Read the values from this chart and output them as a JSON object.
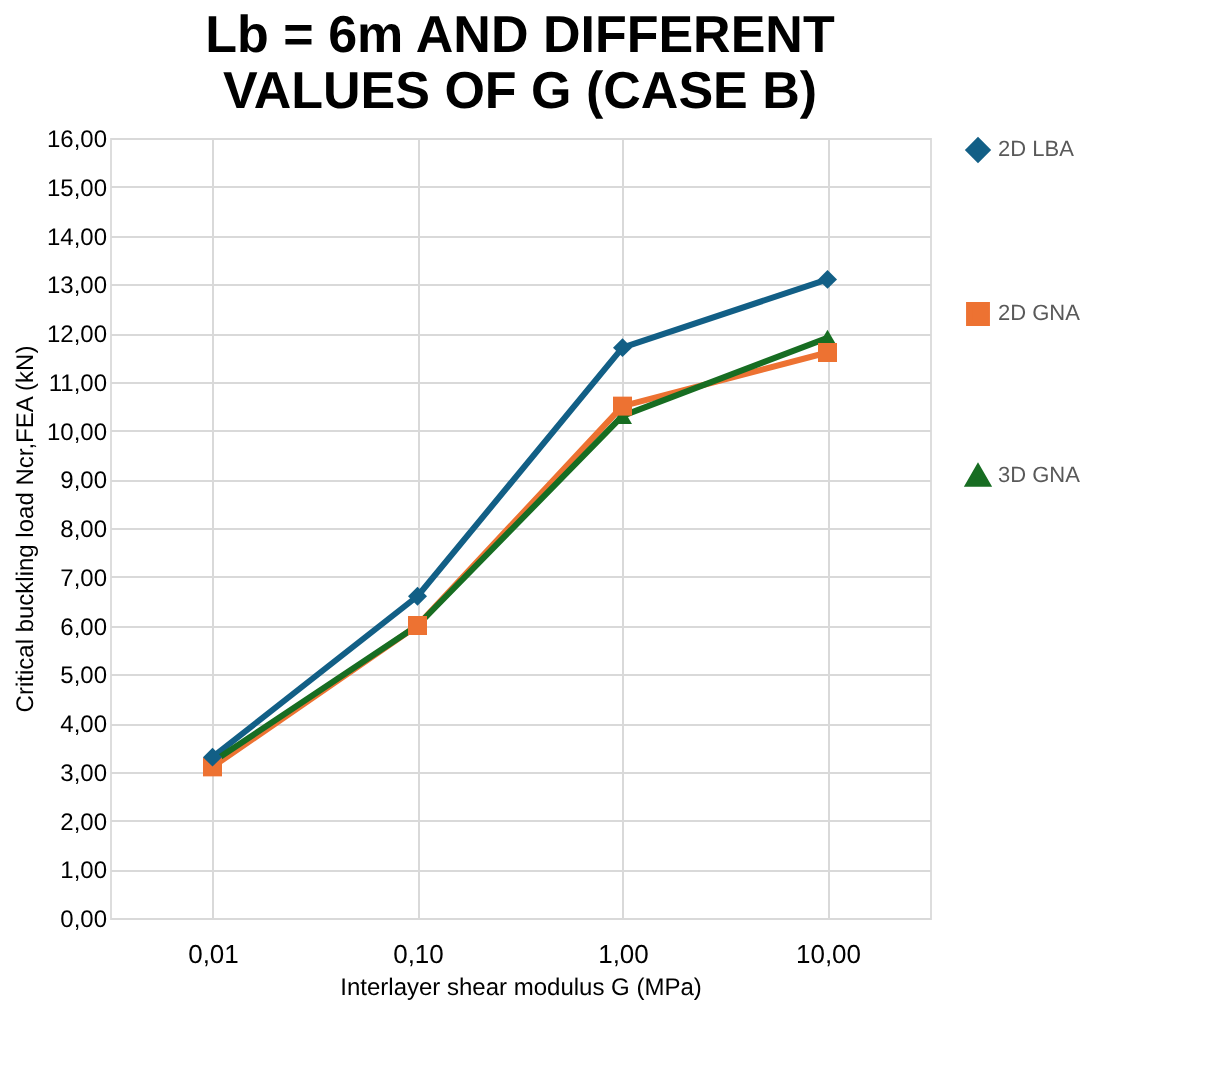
{
  "chart_data": {
    "type": "line",
    "title": "Lb = 6m AND DIFFERENT VALUES OF G (CASE B)",
    "xlabel": "Interlayer shear modulus G (MPa)",
    "ylabel": "Critical buckling load Ncr,FEA (kN)",
    "categories": [
      "0,01",
      "0,10",
      "1,00",
      "10,00"
    ],
    "series": [
      {
        "name": "2D LBA",
        "color": "#125f86",
        "marker": "diamond",
        "values": [
          3.3,
          6.6,
          11.7,
          13.1
        ]
      },
      {
        "name": "2D GNA",
        "color": "#ed7232",
        "marker": "square",
        "values": [
          3.1,
          6.0,
          10.5,
          11.6
        ]
      },
      {
        "name": "3D GNA",
        "color": "#176d22",
        "marker": "triangle",
        "values": [
          3.2,
          6.0,
          10.3,
          11.9
        ]
      }
    ],
    "ylim": [
      0,
      16
    ],
    "yticks": [
      {
        "value": 0,
        "label": "0,00"
      },
      {
        "value": 1,
        "label": "1,00"
      },
      {
        "value": 2,
        "label": "2,00"
      },
      {
        "value": 3,
        "label": "3,00"
      },
      {
        "value": 4,
        "label": "4,00"
      },
      {
        "value": 5,
        "label": "5,00"
      },
      {
        "value": 6,
        "label": "6,00"
      },
      {
        "value": 7,
        "label": "7,00"
      },
      {
        "value": 8,
        "label": "8,00"
      },
      {
        "value": 9,
        "label": "9,00"
      },
      {
        "value": 10,
        "label": "10,00"
      },
      {
        "value": 11,
        "label": "11,00"
      },
      {
        "value": 12,
        "label": "12,00"
      },
      {
        "value": 13,
        "label": "13,00"
      },
      {
        "value": 14,
        "label": "14,00"
      },
      {
        "value": 15,
        "label": "15,00"
      },
      {
        "value": 16,
        "label": "16,00"
      }
    ],
    "grid": true,
    "legend": "right",
    "line_style": "solid"
  }
}
